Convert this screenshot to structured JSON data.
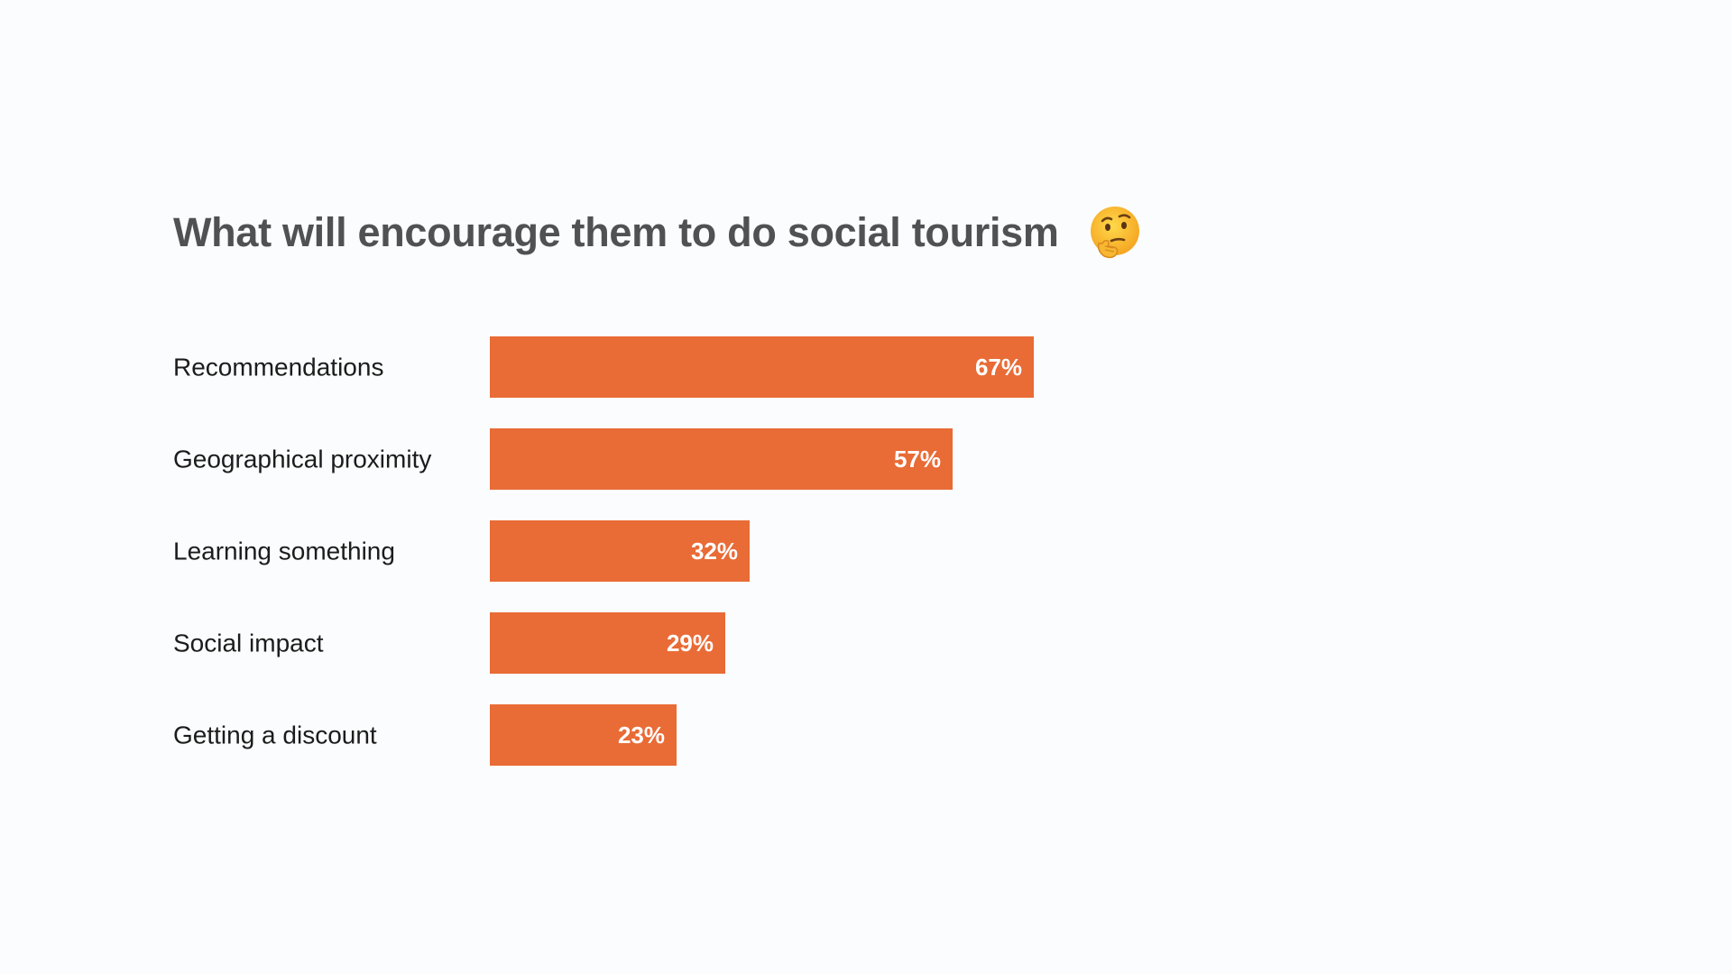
{
  "title": "What will encourage them to do social tourism",
  "title_emoji_icon": "thinking-face-icon",
  "colors": {
    "background": "#fbfcfd",
    "bar": "#e96b36",
    "title_text": "#505152",
    "label_text": "#1c1c1c",
    "value_text": "#ffffff"
  },
  "chart_data": {
    "type": "bar",
    "orientation": "horizontal",
    "title": "What will encourage them to do social tourism",
    "xlabel": "",
    "ylabel": "",
    "grid": false,
    "legend": "none",
    "xlim": [
      0,
      100
    ],
    "unit": "%",
    "categories": [
      "Recommendations",
      "Geographical proximity",
      "Learning something",
      "Social impact",
      "Getting a discount"
    ],
    "values": [
      67,
      57,
      32,
      29,
      23
    ],
    "value_labels": [
      "67%",
      "57%",
      "32%",
      "29%",
      "23%"
    ]
  }
}
